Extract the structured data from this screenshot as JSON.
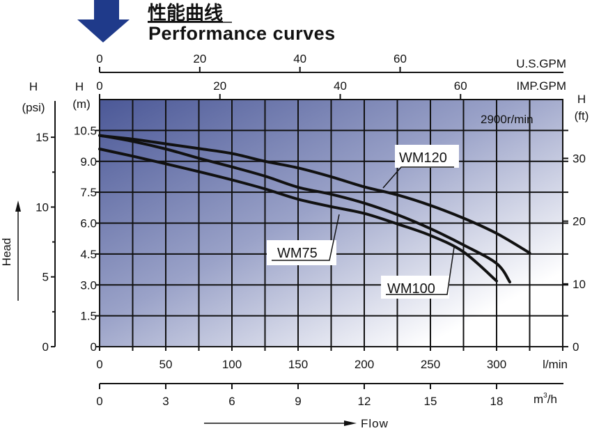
{
  "header": {
    "title_cn": "性能曲线",
    "title_en": "Performance curves",
    "arrow_color": "#1f3a8a"
  },
  "chart_data": {
    "type": "line",
    "title": "Performance curves",
    "speed_label": "2900r/min",
    "xlabel": "Flow",
    "ylabel": "Head",
    "x_unit": "l/min",
    "y_unit_label": [
      "H",
      "(m)"
    ],
    "xlim": [
      0,
      350
    ],
    "ylim": [
      0,
      12
    ],
    "grid": true,
    "x_ticks": [
      0,
      50,
      100,
      150,
      200,
      250,
      300
    ],
    "x_tick_labels": [
      "0",
      "50",
      "100",
      "150",
      "200",
      "250",
      "300"
    ],
    "y_ticks": [
      0,
      1.5,
      3,
      4.5,
      6,
      7.5,
      9,
      10.5
    ],
    "y_tick_labels": [
      "0",
      "1.5",
      "3.0",
      "4.5",
      "6.0",
      "7.5",
      "9.0",
      "10.5"
    ],
    "secondary_axes": {
      "us_gpm": {
        "label": "U.S.GPM",
        "ticks": [
          0,
          20,
          40,
          60
        ],
        "tick_labels": [
          "0",
          "20",
          "40",
          "60"
        ],
        "lpm_per_unit": 3.785
      },
      "imp_gpm": {
        "label": "IMP.GPM",
        "ticks": [
          0,
          20,
          40,
          60
        ],
        "tick_labels": [
          "0",
          "20",
          "40",
          "60"
        ],
        "lpm_per_unit": 4.546
      },
      "m3h": {
        "label_base": "m",
        "label_sup": "3",
        "label_tail": "/h",
        "ticks": [
          0,
          3,
          6,
          9,
          12,
          15,
          18
        ],
        "tick_labels": [
          "0",
          "3",
          "6",
          "9",
          "12",
          "15",
          "18"
        ],
        "lpm_per_unit": 16.667
      },
      "psi": {
        "label": [
          "H",
          "(psi)"
        ],
        "ticks": [
          0,
          5,
          10,
          15
        ],
        "tick_labels": [
          "0",
          "5",
          "10",
          "15"
        ],
        "minor_ticks": [
          2.5,
          7.5,
          12.5
        ],
        "m_per_unit": 0.678
      },
      "ft": {
        "label": [
          "H",
          "(ft)"
        ],
        "ticks": [
          0,
          10,
          20,
          30
        ],
        "tick_labels": [
          "0",
          "10",
          "20",
          "30"
        ],
        "m_per_unit": 0.3048
      }
    },
    "series": [
      {
        "name": "WM120",
        "x": [
          0,
          25,
          50,
          75,
          100,
          125,
          150,
          175,
          200,
          225,
          250,
          275,
          300,
          325
        ],
        "y": [
          10.25,
          10.08,
          9.85,
          9.62,
          9.38,
          9.0,
          8.68,
          8.25,
          7.76,
          7.37,
          6.86,
          6.24,
          5.5,
          4.55
        ]
      },
      {
        "name": "WM100",
        "x": [
          0,
          25,
          50,
          75,
          100,
          125,
          150,
          175,
          200,
          225,
          250,
          275,
          300,
          310
        ],
        "y": [
          10.26,
          9.97,
          9.6,
          9.15,
          8.73,
          8.28,
          7.74,
          7.4,
          6.97,
          6.41,
          5.73,
          4.94,
          4.04,
          3.14
        ]
      },
      {
        "name": "WM75",
        "x": [
          0,
          25,
          50,
          75,
          100,
          125,
          150,
          175,
          200,
          225,
          250,
          275,
          300
        ],
        "y": [
          9.6,
          9.25,
          8.88,
          8.5,
          8.1,
          7.66,
          7.16,
          6.8,
          6.47,
          5.96,
          5.4,
          4.6,
          3.19
        ]
      }
    ]
  }
}
